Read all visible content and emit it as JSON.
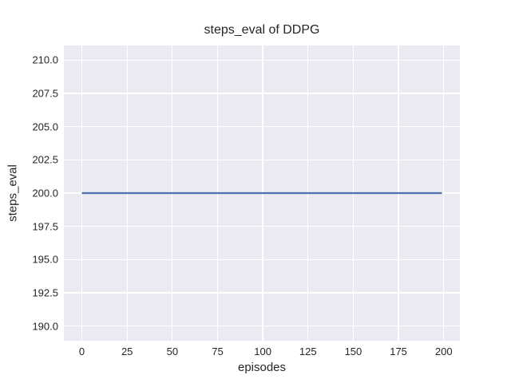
{
  "chart_data": {
    "type": "line",
    "title": "steps_eval of DDPG",
    "xlabel": "episodes",
    "ylabel": "steps_eval",
    "xlim": [
      -9.95,
      208.95
    ],
    "ylim": [
      188.9,
      211.1
    ],
    "x_ticks": [
      0,
      25,
      50,
      75,
      100,
      125,
      150,
      175,
      200
    ],
    "x_tick_labels": [
      "0",
      "25",
      "50",
      "75",
      "100",
      "125",
      "150",
      "175",
      "200"
    ],
    "y_ticks": [
      190,
      192.5,
      195,
      197.5,
      200,
      202.5,
      205,
      207.5,
      210
    ],
    "y_tick_labels": [
      "190.0",
      "192.5",
      "195.0",
      "197.5",
      "200.0",
      "202.5",
      "205.0",
      "207.5",
      "210.0"
    ],
    "grid": true,
    "legend_position": "none",
    "style": {
      "figure_bg": "#ffffff",
      "axes_bg": "#eaeaf2",
      "grid_color": "#ffffff",
      "text_color": "#262626",
      "line_width": 2.2
    },
    "series": [
      {
        "name": "DDPG",
        "color": "#4c72b0",
        "x": [
          0,
          199
        ],
        "y": [
          200,
          200
        ]
      }
    ]
  }
}
